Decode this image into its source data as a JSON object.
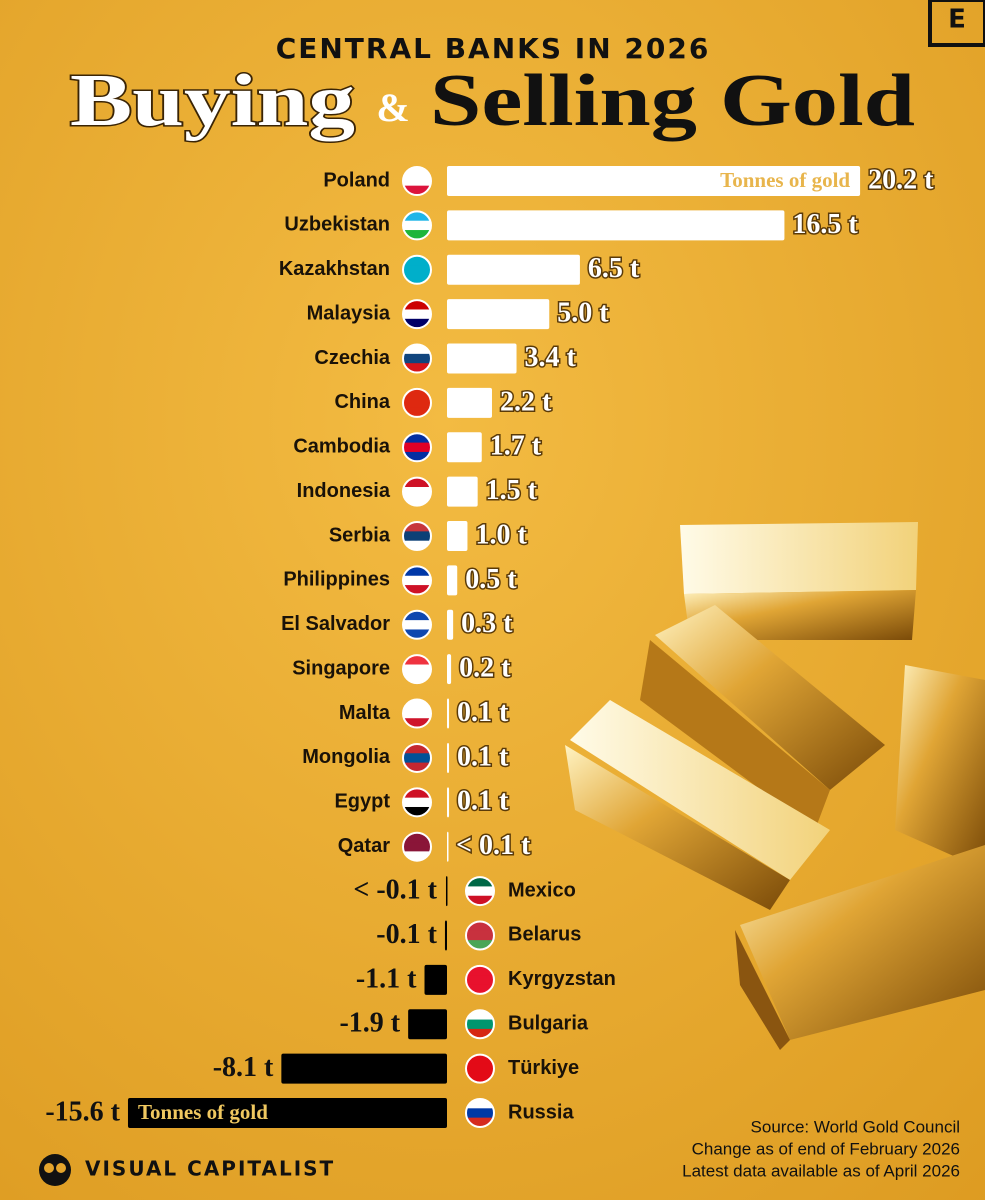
{
  "chart_data": {
    "type": "bar",
    "kicker": "CENTRAL BANKS IN 2026",
    "title_part1": "Buying",
    "title_connector": "&",
    "title_part2": "Selling Gold",
    "annotation_positive": "Tonnes of gold",
    "annotation_negative": "Tonnes of gold",
    "categories": [
      "Poland",
      "Uzbekistan",
      "Kazakhstan",
      "Malaysia",
      "Czechia",
      "China",
      "Cambodia",
      "Indonesia",
      "Serbia",
      "Philippines",
      "El Salvador",
      "Singapore",
      "Malta",
      "Mongolia",
      "Egypt",
      "Qatar",
      "Mexico",
      "Belarus",
      "Kyrgyzstan",
      "Bulgaria",
      "Türkiye",
      "Russia"
    ],
    "values": [
      20.2,
      16.5,
      6.5,
      5.0,
      3.4,
      2.2,
      1.7,
      1.5,
      1.0,
      0.5,
      0.3,
      0.2,
      0.1,
      0.1,
      0.1,
      0.05,
      -0.05,
      -0.1,
      -1.1,
      -1.9,
      -8.1,
      -15.6
    ],
    "value_labels": [
      "20.2 t",
      "16.5 t",
      "6.5 t",
      "5.0 t",
      "3.4 t",
      "2.2 t",
      "1.7 t",
      "1.5 t",
      "1.0 t",
      "0.5 t",
      "0.3 t",
      "0.2 t",
      "0.1 t",
      "0.1 t",
      "0.1 t",
      "< 0.1 t",
      "< -0.1 t",
      "-0.1 t",
      "-1.1 t",
      "-1.9 t",
      "-8.1 t",
      "-15.6 t"
    ],
    "color_positive": "#ffffff",
    "color_negative": "#000000"
  },
  "source": "Source: World Gold Council",
  "notes": [
    "Change as of end of February 2026",
    "Latest data available as of April 2026"
  ],
  "brand": "VISUAL CAPITALIST",
  "logo": "E"
}
